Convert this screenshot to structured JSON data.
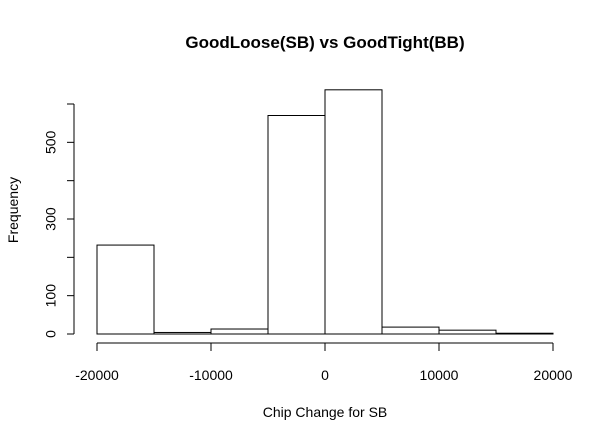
{
  "chart_data": {
    "type": "bar",
    "title": "GoodLoose(SB) vs GoodTight(BB)",
    "xlabel": "Chip Change for SB",
    "ylabel": "Frequency",
    "bins": [
      {
        "x0": -20000,
        "x1": -15000,
        "count": 232
      },
      {
        "x0": -15000,
        "x1": -10000,
        "count": 4
      },
      {
        "x0": -10000,
        "x1": -5000,
        "count": 13
      },
      {
        "x0": -5000,
        "x1": 0,
        "count": 570
      },
      {
        "x0": 0,
        "x1": 5000,
        "count": 637
      },
      {
        "x0": 5000,
        "x1": 10000,
        "count": 18
      },
      {
        "x0": 10000,
        "x1": 15000,
        "count": 10
      },
      {
        "x0": 15000,
        "x1": 20000,
        "count": 2
      }
    ],
    "xlim": [
      -20000,
      20000
    ],
    "ylim": [
      0,
      600
    ],
    "x_ticks": [
      -20000,
      -10000,
      0,
      10000,
      20000
    ],
    "y_ticks": [
      0,
      100,
      200,
      300,
      400,
      500,
      600
    ],
    "y_tick_labels": [
      "0",
      "100",
      "",
      "300",
      "",
      "500",
      ""
    ],
    "grid": false
  }
}
